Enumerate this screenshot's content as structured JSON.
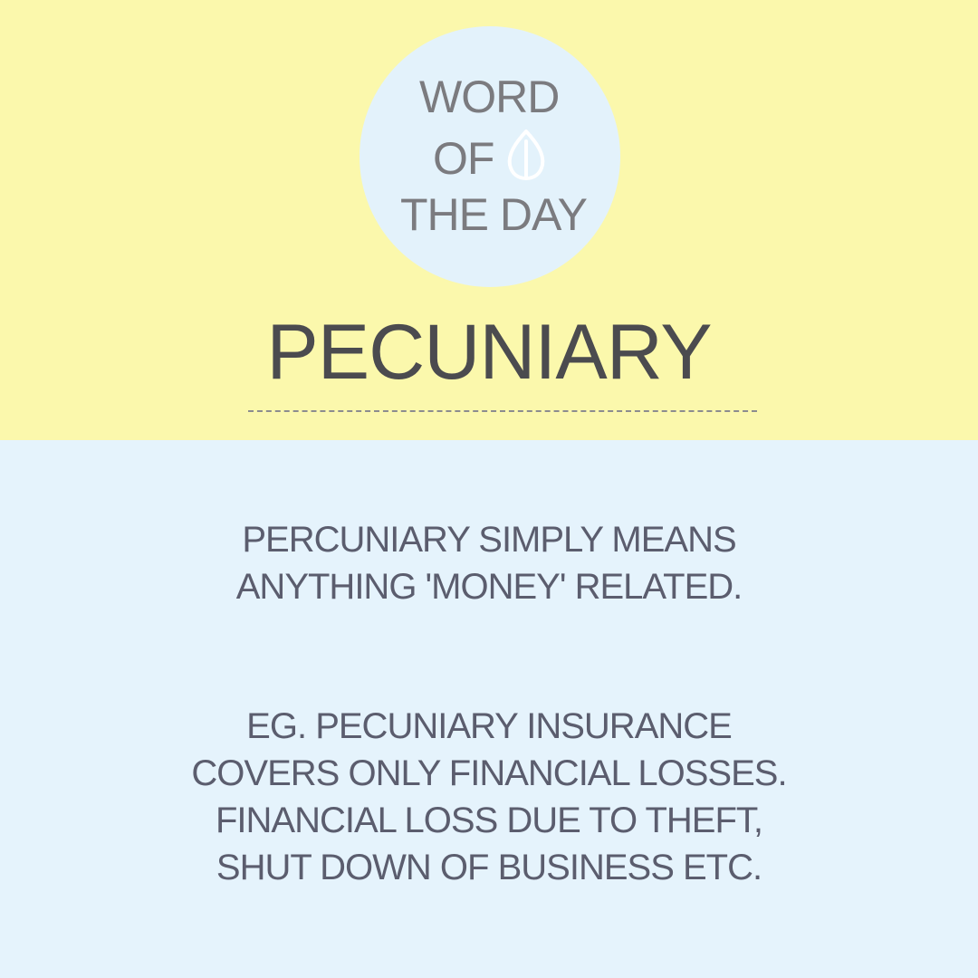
{
  "badge": {
    "lines": [
      "WORD",
      "OF",
      "THE DAY"
    ],
    "icon": "leaf-icon"
  },
  "word": "PECUNIARY",
  "definition": {
    "lines": [
      "PERCUNIARY SIMPLY MEANS",
      "ANYTHING 'MONEY' RELATED."
    ]
  },
  "example": {
    "lines": [
      "EG. PECUNIARY INSURANCE",
      "COVERS ONLY FINANCIAL LOSSES.",
      "FINANCIAL LOSS DUE TO THEFT,",
      "SHUT DOWN OF BUSINESS ETC."
    ]
  },
  "colors": {
    "top_background": "#fbf8ac",
    "bottom_background": "#e5f3fc",
    "badge_circle": "#e3f2fb",
    "badge_text": "#7b7b7f",
    "title_text": "#4b4b4f",
    "body_text": "#5b5d6e"
  }
}
